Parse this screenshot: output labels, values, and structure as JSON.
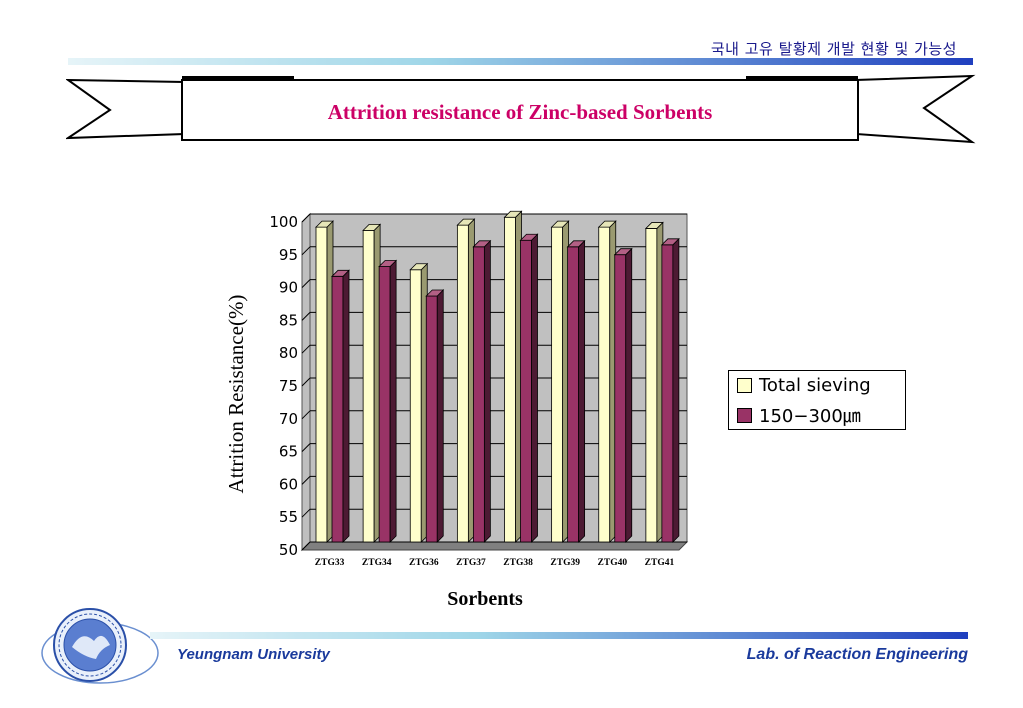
{
  "header": {
    "subtitle": "국내 고유  탈황제  개발 현황 및 가능성"
  },
  "banner": {
    "title": "Attrition resistance of Zinc-based Sorbents"
  },
  "footer": {
    "left": "Yeungnam  University",
    "right": "Lab. of Reaction Engineering"
  },
  "logo": {
    "name": "Yeungnam University seal",
    "text": "YEUNGNAM 1947 UNIVERSITY"
  },
  "colors": {
    "accent_title": "#cc0066",
    "footer_text": "#1a3a9c",
    "series1": "#ffffcc",
    "series2": "#993366"
  },
  "chart_data": {
    "type": "bar",
    "xlabel": "Sorbents",
    "ylabel": "Attrition Resistance(%)",
    "ylim": [
      50,
      100
    ],
    "yticks": [
      "50",
      "55",
      "60",
      "65",
      "70",
      "75",
      "80",
      "85",
      "90",
      "95",
      "100"
    ],
    "grid": true,
    "legend_position": "right",
    "categories": [
      "ZTG33",
      "ZTG34",
      "ZTG36",
      "ZTG37",
      "ZTG38",
      "ZTG39",
      "ZTG40",
      "ZTG41"
    ],
    "series": [
      {
        "name": "Total sieving",
        "values": [
          98,
          97.5,
          91.5,
          98.3,
          99.5,
          98,
          98,
          97.8
        ]
      },
      {
        "name": "150−300㎛",
        "values": [
          90.5,
          92,
          87.5,
          95,
          96,
          95,
          93.8,
          95.3
        ]
      }
    ]
  }
}
